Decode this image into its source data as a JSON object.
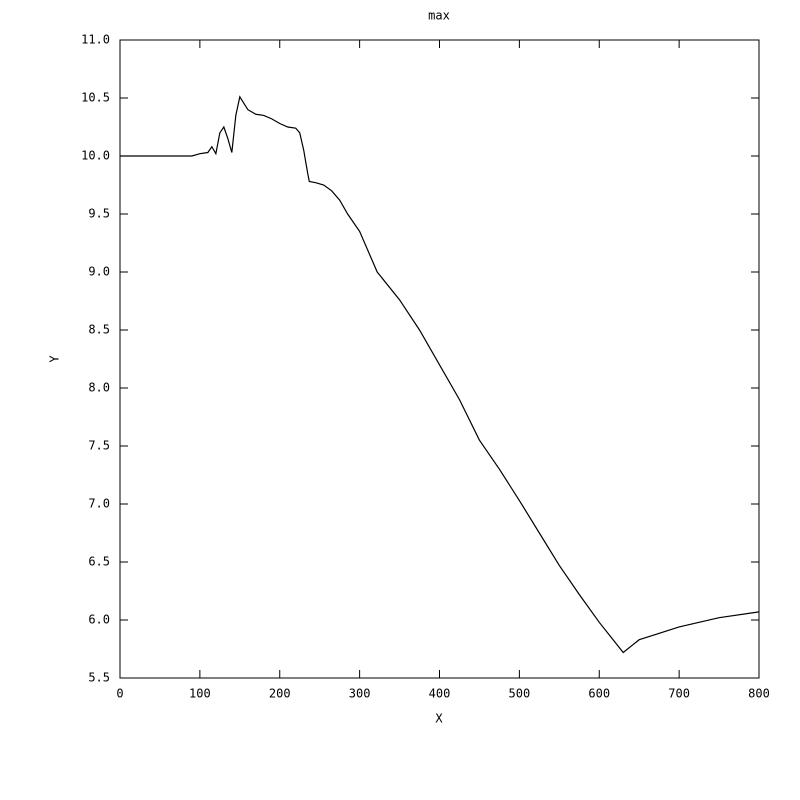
{
  "chart_data": {
    "type": "line",
    "title": "max",
    "x_label": "X",
    "y_label": "Y",
    "x": [
      0,
      70,
      80,
      90,
      100,
      110,
      115,
      120,
      125,
      130,
      135,
      140,
      145,
      150,
      160,
      170,
      180,
      190,
      200,
      210,
      220,
      225,
      230,
      235,
      237,
      245,
      255,
      265,
      275,
      285,
      300,
      322,
      350,
      375,
      400,
      425,
      450,
      475,
      500,
      525,
      550,
      575,
      600,
      630,
      650,
      700,
      750,
      800
    ],
    "series": [
      {
        "name": "max",
        "color": "#000000",
        "values": [
          10.0,
          10.0,
          10.0,
          10.0,
          10.02,
          10.03,
          10.08,
          10.02,
          10.2,
          10.25,
          10.15,
          10.03,
          10.35,
          10.51,
          10.4,
          10.36,
          10.35,
          10.32,
          10.28,
          10.25,
          10.24,
          10.2,
          10.05,
          9.85,
          9.78,
          9.77,
          9.75,
          9.7,
          9.62,
          9.5,
          9.35,
          9.0,
          8.76,
          8.5,
          8.2,
          7.9,
          7.55,
          7.3,
          7.03,
          6.75,
          6.47,
          6.22,
          5.98,
          5.72,
          5.83,
          5.94,
          6.02,
          6.07
        ]
      }
    ],
    "xlim": [
      0,
      800
    ],
    "xticks": [
      0,
      100,
      200,
      300,
      400,
      500,
      600,
      700,
      800
    ],
    "ylim": [
      5.5,
      11.0
    ],
    "yticks": [
      {
        "value": 5.5,
        "label": "5.5"
      },
      {
        "value": 6.0,
        "label": "6.0"
      },
      {
        "value": 6.5,
        "label": "6.5"
      },
      {
        "value": 7.0,
        "label": "7.0"
      },
      {
        "value": 7.5,
        "label": "7.5"
      },
      {
        "value": 8.0,
        "label": "8.0"
      },
      {
        "value": 8.5,
        "label": "8.5"
      },
      {
        "value": 9.0,
        "label": "9.0"
      },
      {
        "value": 9.5,
        "label": "9.5"
      },
      {
        "value": 10.0,
        "label": "10.0"
      },
      {
        "value": 10.5,
        "label": "10.5"
      },
      {
        "value": 11.0,
        "label": "11.0"
      }
    ],
    "grid": false
  }
}
